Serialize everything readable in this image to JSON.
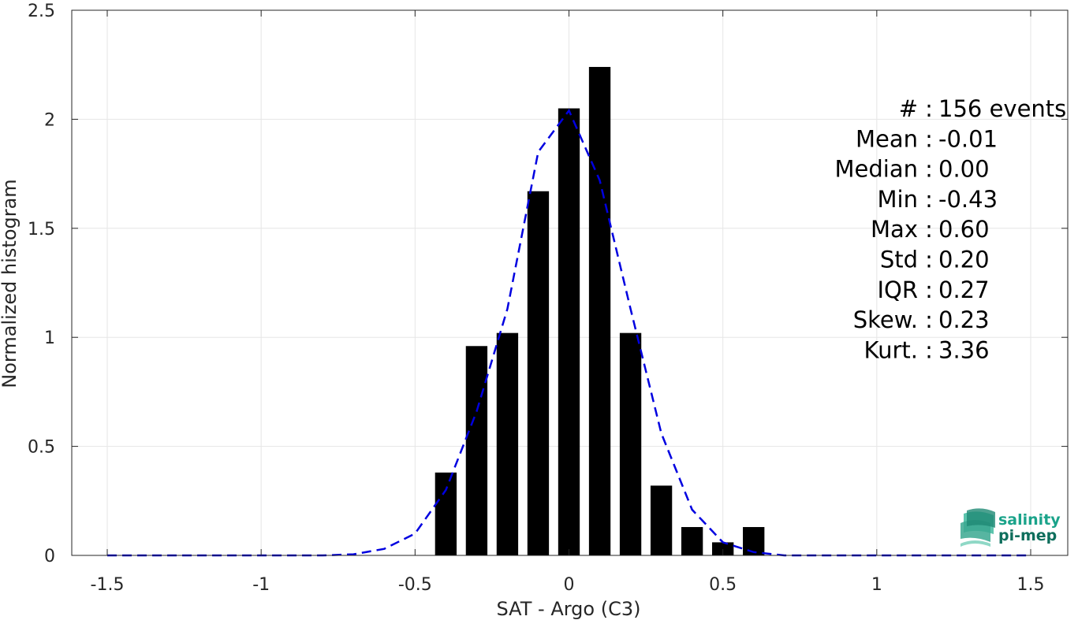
{
  "chart_data": {
    "type": "bar",
    "xlabel": "SAT - Argo (C3)",
    "ylabel": "Normalized histogram",
    "xlim": [
      -1.5,
      1.5
    ],
    "ylim": [
      0,
      2.5
    ],
    "grid": true,
    "x_ticks": [
      "-1.5",
      "-1",
      "-0.5",
      "0",
      "0.5",
      "1",
      "1.5"
    ],
    "y_ticks": [
      "0",
      "0.5",
      "1",
      "1.5",
      "2",
      "2.5"
    ],
    "bar_color": "#000000",
    "bars": [
      {
        "x": -0.4,
        "value": 0.38
      },
      {
        "x": -0.3,
        "value": 0.96
      },
      {
        "x": -0.2,
        "value": 1.02
      },
      {
        "x": -0.1,
        "value": 1.67
      },
      {
        "x": 0.0,
        "value": 2.05
      },
      {
        "x": 0.1,
        "value": 2.24
      },
      {
        "x": 0.2,
        "value": 1.02
      },
      {
        "x": 0.3,
        "value": 0.32
      },
      {
        "x": 0.4,
        "value": 0.13
      },
      {
        "x": 0.5,
        "value": 0.06
      },
      {
        "x": 0.6,
        "value": 0.13
      }
    ],
    "bar_width": 0.07,
    "fit_curve": {
      "color": "#0000e0",
      "style": "dashed",
      "points": [
        [
          -1.5,
          0.0
        ],
        [
          -1.4,
          0.0
        ],
        [
          -1.3,
          0.0
        ],
        [
          -1.2,
          0.0
        ],
        [
          -1.1,
          0.0
        ],
        [
          -1.0,
          0.0
        ],
        [
          -0.9,
          0.0
        ],
        [
          -0.8,
          0.0
        ],
        [
          -0.7,
          0.005
        ],
        [
          -0.6,
          0.03
        ],
        [
          -0.5,
          0.1
        ],
        [
          -0.4,
          0.3
        ],
        [
          -0.3,
          0.66
        ],
        [
          -0.2,
          1.13
        ],
        [
          -0.1,
          1.85
        ],
        [
          0.0,
          2.04
        ],
        [
          0.1,
          1.72
        ],
        [
          0.2,
          1.13
        ],
        [
          0.3,
          0.56
        ],
        [
          0.4,
          0.21
        ],
        [
          0.5,
          0.06
        ],
        [
          0.6,
          0.015
        ],
        [
          0.7,
          0.0
        ],
        [
          0.8,
          0.0
        ],
        [
          0.9,
          0.0
        ],
        [
          1.0,
          0.0
        ],
        [
          1.1,
          0.0
        ],
        [
          1.2,
          0.0
        ],
        [
          1.3,
          0.0
        ],
        [
          1.4,
          0.0
        ],
        [
          1.5,
          0.0
        ]
      ]
    }
  },
  "stats": [
    {
      "label": "#",
      "sep": ":",
      "value": "156 events"
    },
    {
      "label": "Mean",
      "sep": ":",
      "value": "-0.01"
    },
    {
      "label": "Median",
      "sep": ":",
      "value": "0.00"
    },
    {
      "label": "Min",
      "sep": ":",
      "value": "-0.43"
    },
    {
      "label": "Max",
      "sep": ":",
      "value": "0.60"
    },
    {
      "label": "Std",
      "sep": ":",
      "value": "0.20"
    },
    {
      "label": "IQR",
      "sep": ":",
      "value": "0.27"
    },
    {
      "label": "Skew.",
      "sep": ":",
      "value": "0.23"
    },
    {
      "label": "Kurt.",
      "sep": ":",
      "value": "3.36"
    }
  ],
  "logo": {
    "line1": "salinity",
    "line2": "pi-mep",
    "color1": "#1aa38a",
    "color2": "#0e6e5c"
  }
}
